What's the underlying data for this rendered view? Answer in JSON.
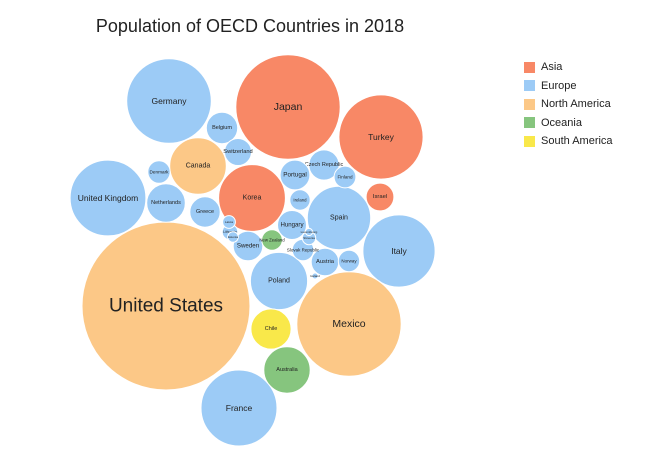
{
  "chart_data": {
    "type": "bubble",
    "title": "Population of OECD Countries in 2018",
    "legend_position": "top-right",
    "region_colors": {
      "Asia": "#f88866",
      "Europe": "#9ccbf6",
      "North America": "#fcc887",
      "Oceania": "#86c57e",
      "South America": "#f9e84a"
    },
    "legend": [
      "Asia",
      "Europe",
      "North America",
      "Oceania",
      "South America"
    ],
    "bubbles": [
      {
        "label": "United States",
        "region": "North America",
        "value": 327.2
      },
      {
        "label": "Mexico",
        "region": "North America",
        "value": 126.2
      },
      {
        "label": "Japan",
        "region": "Asia",
        "value": 126.5
      },
      {
        "label": "Turkey",
        "region": "Asia",
        "value": 82.3
      },
      {
        "label": "Germany",
        "region": "Europe",
        "value": 82.9
      },
      {
        "label": "France",
        "region": "Europe",
        "value": 67.0
      },
      {
        "label": "United Kingdom",
        "region": "Europe",
        "value": 66.5
      },
      {
        "label": "Italy",
        "region": "Europe",
        "value": 60.4
      },
      {
        "label": "Korea",
        "region": "Asia",
        "value": 51.6
      },
      {
        "label": "Spain",
        "region": "Europe",
        "value": 46.7
      },
      {
        "label": "Poland",
        "region": "Europe",
        "value": 38.0
      },
      {
        "label": "Canada",
        "region": "North America",
        "value": 37.1
      },
      {
        "label": "Australia",
        "region": "Oceania",
        "value": 25.0
      },
      {
        "label": "Chile",
        "region": "South America",
        "value": 18.7
      },
      {
        "label": "Netherlands",
        "region": "Europe",
        "value": 17.2
      },
      {
        "label": "Belgium",
        "region": "Europe",
        "value": 11.4
      },
      {
        "label": "Greece",
        "region": "Europe",
        "value": 10.7
      },
      {
        "label": "Czech Republic",
        "region": "Europe",
        "value": 10.6
      },
      {
        "label": "Portugal",
        "region": "Europe",
        "value": 10.3
      },
      {
        "label": "Sweden",
        "region": "Europe",
        "value": 10.2
      },
      {
        "label": "Hungary",
        "region": "Europe",
        "value": 9.8
      },
      {
        "label": "Israel",
        "region": "Asia",
        "value": 8.9
      },
      {
        "label": "Switzerland",
        "region": "Europe",
        "value": 8.5
      },
      {
        "label": "Austria",
        "region": "Europe",
        "value": 8.8
      },
      {
        "label": "Denmark",
        "region": "Europe",
        "value": 5.8
      },
      {
        "label": "Finland",
        "region": "Europe",
        "value": 5.5
      },
      {
        "label": "Slovak Republic",
        "region": "Europe",
        "value": 5.4
      },
      {
        "label": "Norway",
        "region": "Europe",
        "value": 5.3
      },
      {
        "label": "Ireland",
        "region": "Europe",
        "value": 4.8
      },
      {
        "label": "New Zealand",
        "region": "Oceania",
        "value": 4.9
      },
      {
        "label": "Lithuania",
        "region": "Europe",
        "value": 2.8
      },
      {
        "label": "Slovenia",
        "region": "Europe",
        "value": 2.1
      },
      {
        "label": "Latvia",
        "region": "Europe",
        "value": 1.9
      },
      {
        "label": "Estonia",
        "region": "Europe",
        "value": 1.3
      },
      {
        "label": "Luxembourg",
        "region": "Europe",
        "value": 0.6
      },
      {
        "label": "Iceland",
        "region": "Europe",
        "value": 0.35
      }
    ]
  }
}
